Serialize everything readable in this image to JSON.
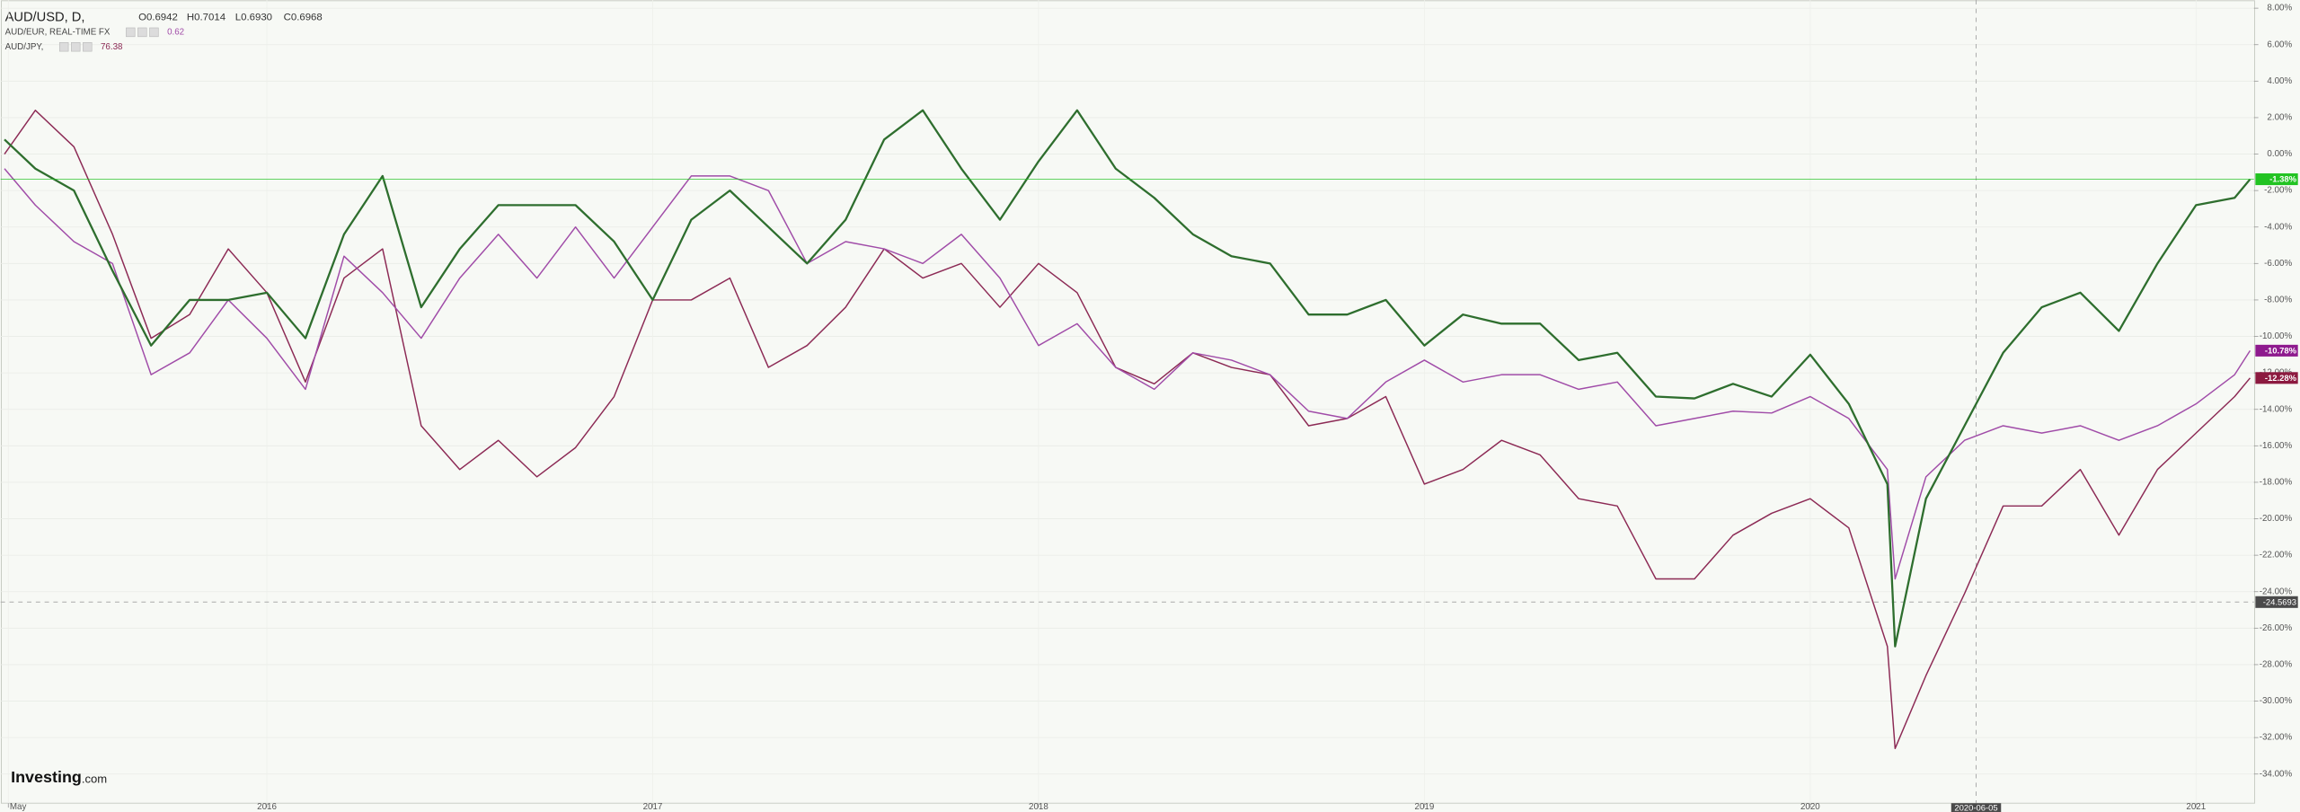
{
  "chart_data": {
    "type": "line",
    "title": "AUD/USD, D,",
    "ohlc": [
      "O0.6942",
      "H0.7014",
      "L0.6930",
      "C0.6968"
    ],
    "brand": [
      "Investing",
      ".com"
    ],
    "x": [
      2015.32,
      2015.4,
      2015.5,
      2015.6,
      2015.7,
      2015.8,
      2015.9,
      2016.0,
      2016.1,
      2016.2,
      2016.3,
      2016.4,
      2016.5,
      2016.6,
      2016.7,
      2016.8,
      2016.9,
      2017.0,
      2017.1,
      2017.2,
      2017.3,
      2017.4,
      2017.5,
      2017.6,
      2017.7,
      2017.8,
      2017.9,
      2018.0,
      2018.1,
      2018.2,
      2018.3,
      2018.4,
      2018.5,
      2018.6,
      2018.7,
      2018.8,
      2018.9,
      2019.0,
      2019.1,
      2019.2,
      2019.3,
      2019.4,
      2019.5,
      2019.6,
      2019.7,
      2019.8,
      2019.9,
      2020.0,
      2020.1,
      2020.2,
      2020.22,
      2020.3,
      2020.4,
      2020.5,
      2020.6,
      2020.7,
      2020.8,
      2020.9,
      2021.0,
      2021.1,
      2021.14
    ],
    "series": [
      {
        "name": "AUD/USD, D,",
        "color": "#2e6e2e",
        "quote": null,
        "last_label": "-1.38%",
        "last_color": "#22c322",
        "values": [
          0.8,
          -0.8,
          -2.0,
          -6.4,
          -10.5,
          -8.0,
          -8.0,
          -7.6,
          -10.1,
          -4.4,
          -1.2,
          -8.4,
          -5.2,
          -2.8,
          -2.8,
          -2.8,
          -4.8,
          -8.0,
          -3.6,
          -2.0,
          -4.0,
          -6.0,
          -3.6,
          0.8,
          2.4,
          -0.8,
          -3.6,
          -0.4,
          2.4,
          -0.8,
          -2.4,
          -4.4,
          -5.6,
          -6.0,
          -8.8,
          -8.8,
          -8.0,
          -10.5,
          -8.8,
          -9.3,
          -9.3,
          -11.3,
          -10.9,
          -13.3,
          -13.4,
          -12.6,
          -13.3,
          -11.0,
          -13.7,
          -18.1,
          -27.0,
          -18.9,
          -14.9,
          -10.9,
          -8.4,
          -7.6,
          -9.7,
          -6.0,
          -2.8,
          -2.4,
          -1.38
        ]
      },
      {
        "name": "AUD/EUR, REAL-TIME FX",
        "color": "#a04ca8",
        "quote": "0.62",
        "last_label": "-10.78%",
        "last_color": "#8e1a8e",
        "values": [
          -0.8,
          -2.8,
          -4.8,
          -6.0,
          -12.1,
          -10.9,
          -8.0,
          -10.1,
          -12.9,
          -5.6,
          -7.6,
          -10.1,
          -6.8,
          -4.4,
          -6.8,
          -4.0,
          -6.8,
          -4.0,
          -1.2,
          -1.2,
          -2.0,
          -6.0,
          -4.8,
          -5.2,
          -6.0,
          -4.4,
          -6.8,
          -10.5,
          -9.3,
          -11.7,
          -12.9,
          -10.9,
          -11.3,
          -12.1,
          -14.1,
          -14.5,
          -12.5,
          -11.3,
          -12.5,
          -12.1,
          -12.1,
          -12.9,
          -12.5,
          -14.9,
          -14.5,
          -14.1,
          -14.2,
          -13.3,
          -14.5,
          -17.3,
          -23.3,
          -17.7,
          -15.7,
          -14.9,
          -15.3,
          -14.9,
          -15.7,
          -14.9,
          -13.7,
          -12.1,
          -10.78
        ]
      },
      {
        "name": "AUD/JPY,",
        "color": "#8c2a55",
        "quote": "76.38",
        "last_label": "-12.28%",
        "last_color": "#8c1a40",
        "values": [
          0.0,
          2.4,
          0.4,
          -4.4,
          -10.1,
          -8.8,
          -5.2,
          -7.6,
          -12.5,
          -6.8,
          -5.2,
          -14.9,
          -17.3,
          -15.7,
          -17.7,
          -16.1,
          -13.3,
          -8.0,
          -8.0,
          -6.8,
          -11.7,
          -10.5,
          -8.4,
          -5.2,
          -6.8,
          -6.0,
          -8.4,
          -6.0,
          -7.6,
          -11.7,
          -12.6,
          -10.9,
          -11.7,
          -12.1,
          -14.9,
          -14.5,
          -13.3,
          -18.1,
          -17.3,
          -15.7,
          -16.5,
          -18.9,
          -19.3,
          -23.3,
          -23.3,
          -20.9,
          -19.7,
          -18.9,
          -20.5,
          -27.0,
          -32.6,
          -28.6,
          -24.1,
          -19.3,
          -19.3,
          -17.3,
          -20.9,
          -17.3,
          -15.3,
          -13.3,
          -12.28
        ]
      }
    ],
    "xlim": [
      2015.31,
      2021.15
    ],
    "xticks": [
      {
        "value": 2015.33,
        "label": "May"
      },
      2016,
      2017,
      2018,
      2019,
      2020,
      2021
    ],
    "ylim": [
      -35.6,
      8.45
    ],
    "yticks": [
      {
        "value": 8,
        "label": "8.00%"
      },
      {
        "value": 6,
        "label": "6.00%"
      },
      {
        "value": 4,
        "label": "4.00%"
      },
      {
        "value": 2,
        "label": "2.00%"
      },
      {
        "value": 0,
        "label": "0.00%"
      },
      {
        "value": -2,
        "label": "-2.00%"
      },
      {
        "value": -4,
        "label": "-4.00%"
      },
      {
        "value": -6,
        "label": "-6.00%"
      },
      {
        "value": -8,
        "label": "-8.00%"
      },
      {
        "value": -10,
        "label": "-10.00%"
      },
      {
        "value": -12,
        "label": "-12.00%"
      },
      {
        "value": -14,
        "label": "-14.00%"
      },
      {
        "value": -16,
        "label": "-16.00%"
      },
      {
        "value": -18,
        "label": "-18.00%"
      },
      {
        "value": -20,
        "label": "-20.00%"
      },
      {
        "value": -22,
        "label": "-22.00%"
      },
      {
        "value": -24,
        "label": "-24.00%"
      },
      {
        "value": -26,
        "label": "-26.00%"
      },
      {
        "value": -28,
        "label": "-28.00%"
      },
      {
        "value": -30,
        "label": "-30.00%"
      },
      {
        "value": -32,
        "label": "-32.00%"
      },
      {
        "value": -34,
        "label": "-34.00%"
      }
    ],
    "grid": true,
    "crosshair": {
      "x": 2020.43,
      "x_label": "2020-06-05",
      "y": -24.5693,
      "y_label": "-24.5693"
    }
  }
}
